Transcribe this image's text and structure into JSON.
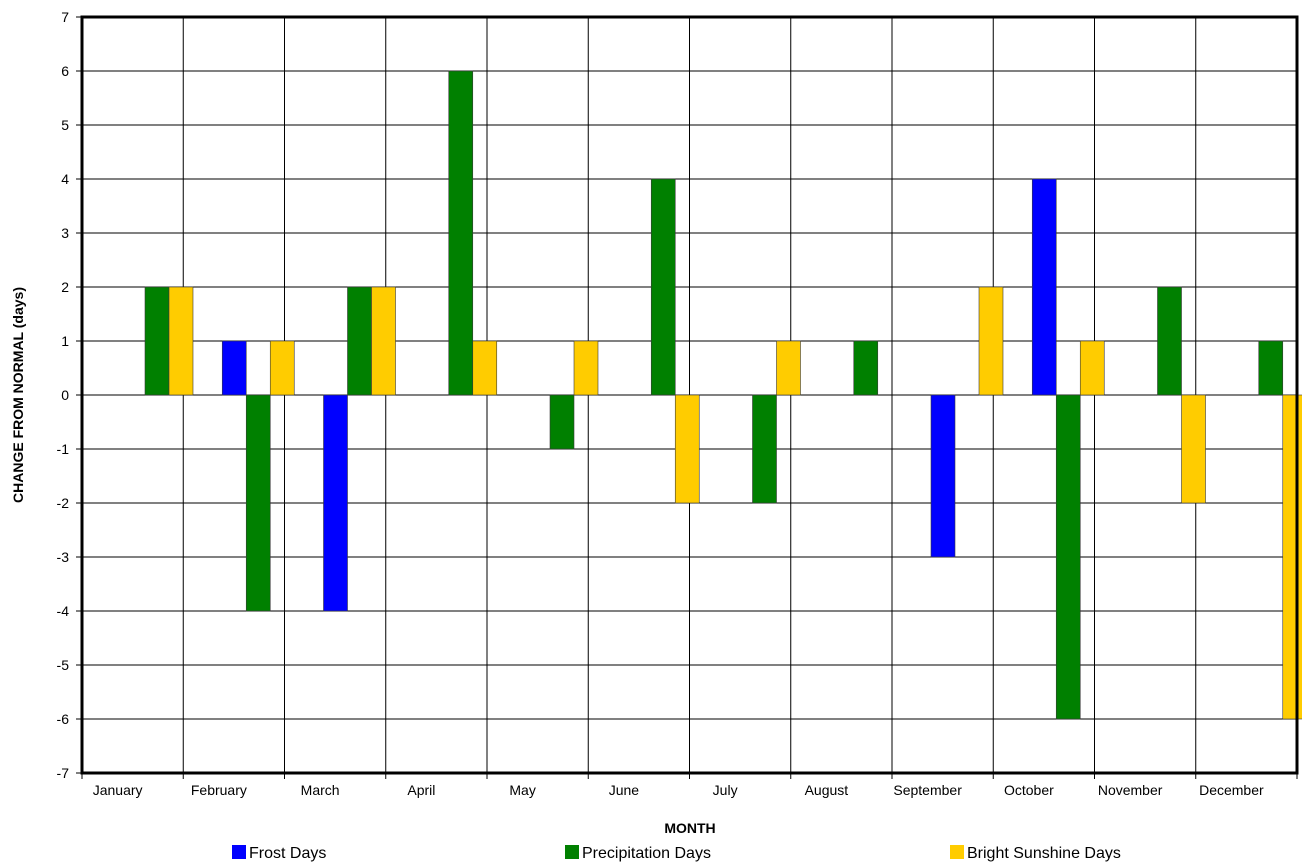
{
  "chart_data": {
    "type": "bar",
    "xlabel": "MONTH",
    "ylabel": "CHANGE FROM NORMAL (days)",
    "ylim": [
      -7,
      7
    ],
    "yticks": [
      7,
      6,
      5,
      4,
      3,
      2,
      1,
      0,
      -1,
      -2,
      -3,
      -4,
      -5,
      -6,
      -7
    ],
    "grid": true,
    "legend_position": "bottom",
    "categories": [
      "January",
      "February",
      "March",
      "April",
      "May",
      "June",
      "July",
      "August",
      "September",
      "October",
      "November",
      "December"
    ],
    "series": [
      {
        "name": "Frost Days",
        "color": "#0000ff",
        "values": [
          0,
          1,
          -4,
          0,
          0,
          0,
          0,
          0,
          -3,
          4,
          0,
          0
        ]
      },
      {
        "name": "Precipitation Days",
        "color": "#008000",
        "values": [
          2,
          -4,
          2,
          6,
          -1,
          4,
          -2,
          1,
          0,
          -6,
          2,
          1
        ]
      },
      {
        "name": "Bright Sunshine Days",
        "color": "#ffcc00",
        "values": [
          2,
          1,
          2,
          1,
          1,
          -2,
          1,
          0,
          2,
          1,
          -2,
          -6
        ]
      }
    ]
  }
}
